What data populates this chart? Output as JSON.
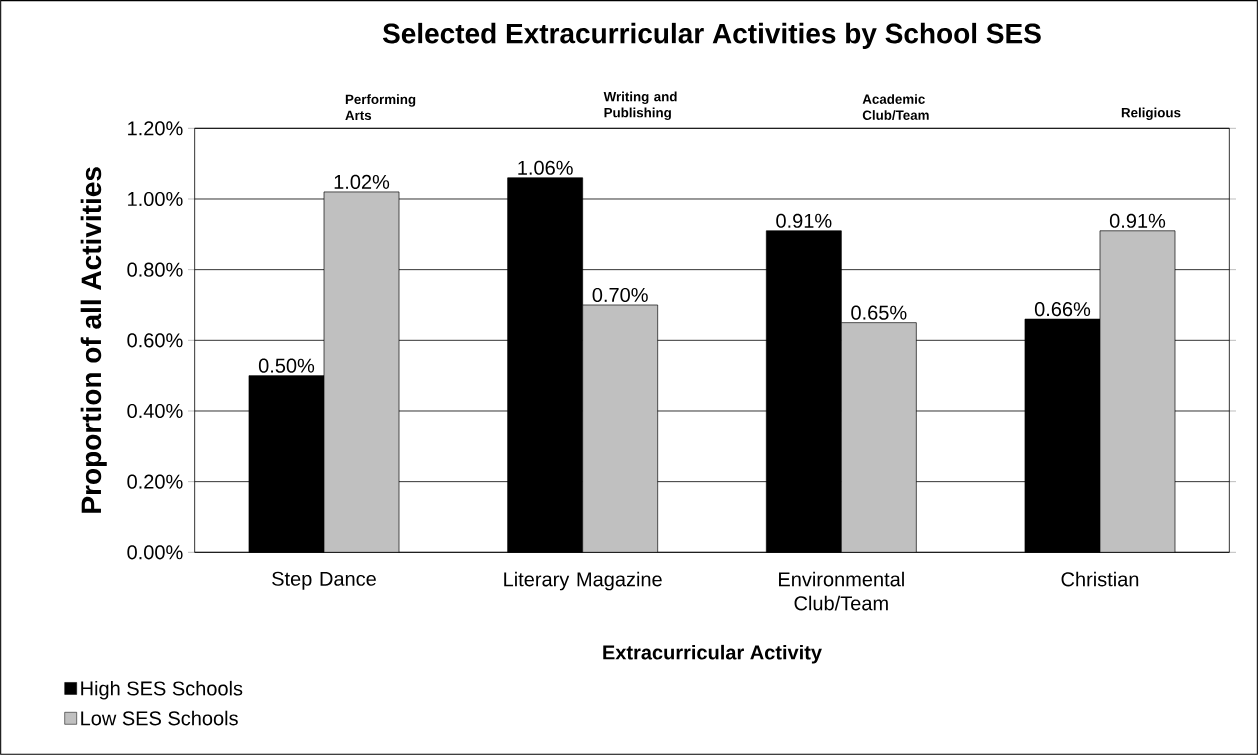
{
  "chart_data": {
    "type": "bar",
    "title": "Selected Extracurricular Activities by School SES",
    "xlabel": "Extracurricular Activity",
    "ylabel": "Proportion of all Activities",
    "categories": [
      "Step Dance",
      "Literary Magazine",
      "Environmental Club/Team",
      "Christian"
    ],
    "series": [
      {
        "name": "High SES Schools",
        "color": "#000000",
        "values": [
          0.5,
          1.06,
          0.91,
          0.66
        ],
        "value_labels": [
          "0.50%",
          "1.06%",
          "0.91%",
          "0.66%"
        ]
      },
      {
        "name": "Low SES Schools",
        "color": "#c0c0c0",
        "values": [
          1.02,
          0.7,
          0.65,
          0.91
        ],
        "value_labels": [
          "1.02%",
          "0.70%",
          "0.65%",
          "0.91%"
        ]
      }
    ],
    "annotations": [
      "Performing Arts",
      "Writing and Publishing",
      "Academic Club/Team",
      "Religious"
    ],
    "ylim": [
      0,
      1.2
    ],
    "yticks": [
      {
        "value": 0,
        "label": "0.00%"
      },
      {
        "value": 0.2,
        "label": "0.20%"
      },
      {
        "value": 0.4,
        "label": "0.40%"
      },
      {
        "value": 0.6,
        "label": "0.60%"
      },
      {
        "value": 0.8,
        "label": "0.80%"
      },
      {
        "value": 1.0,
        "label": "1.00%"
      },
      {
        "value": 1.2,
        "label": "1.20%"
      }
    ],
    "grid": "y",
    "legend": "bottom left"
  }
}
